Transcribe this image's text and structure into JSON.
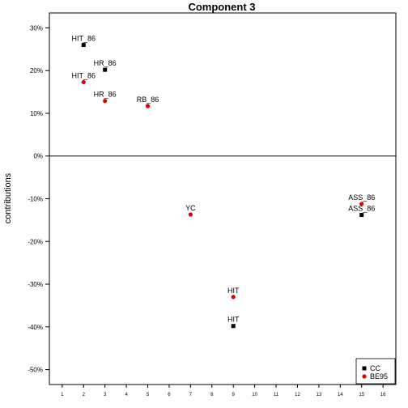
{
  "chart_data": {
    "type": "scatter",
    "title": "Component 3",
    "xlabel": "",
    "ylabel": "contributions",
    "xlim": [
      0.4,
      16.6
    ],
    "ylim": [
      -53.5,
      33.5
    ],
    "x_ticks": [
      1,
      2,
      3,
      4,
      5,
      6,
      7,
      8,
      9,
      10,
      11,
      12,
      13,
      14,
      15,
      16
    ],
    "y_ticks": [
      30,
      20,
      10,
      0,
      -10,
      -20,
      -30,
      -40,
      -50
    ],
    "y_tick_labels": [
      "30%",
      "20%",
      "10%",
      "0%",
      "-10%",
      "-20%",
      "-30%",
      "-40%",
      "-50%"
    ],
    "zero_line": true,
    "grid": false,
    "legend_position": "bottom-right",
    "series": [
      {
        "name": "CC",
        "color": "#000000",
        "marker": "square",
        "points": [
          {
            "x": 2,
            "y": 26.0,
            "label": "HIT_86"
          },
          {
            "x": 3,
            "y": 20.2,
            "label": "HR_86"
          },
          {
            "x": 9,
            "y": -39.8,
            "label": "HIT"
          },
          {
            "x": 15,
            "y": -13.8,
            "label": "ASS_86"
          }
        ]
      },
      {
        "name": "BE95",
        "color": "#e00000",
        "marker": "circle",
        "points": [
          {
            "x": 2,
            "y": 17.3,
            "label": "HIT_86"
          },
          {
            "x": 3,
            "y": 12.9,
            "label": "HR_86"
          },
          {
            "x": 5,
            "y": 11.7,
            "label": "RB_86"
          },
          {
            "x": 7,
            "y": -13.7,
            "label": "YC"
          },
          {
            "x": 9,
            "y": -33.0,
            "label": "HIT"
          },
          {
            "x": 15,
            "y": -11.2,
            "label": "ASS_86"
          }
        ]
      }
    ]
  }
}
